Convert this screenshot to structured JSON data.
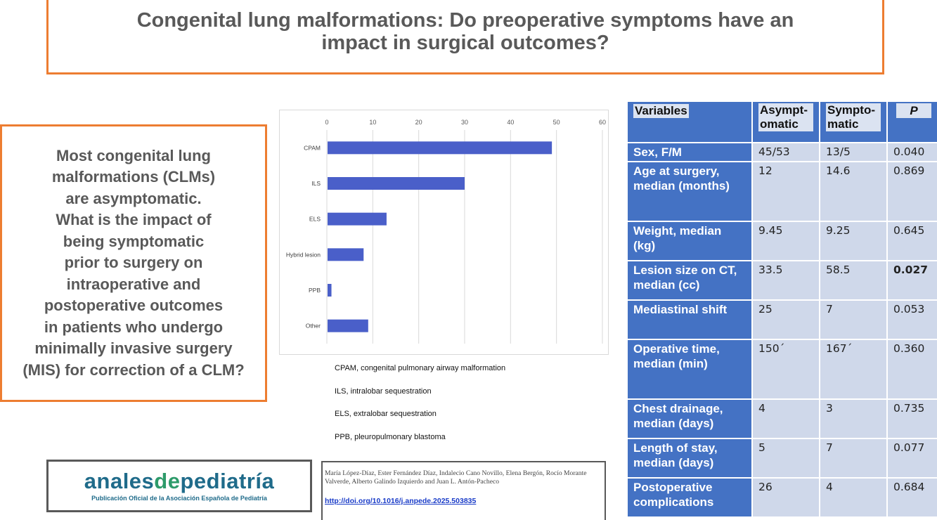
{
  "title": "Congenital lung malformations: Do preoperative symptoms have an impact in surgical outcomes?",
  "question": "Most congenital lung malformations (CLMs)\nare asymptomatic.\nWhat is the impact of\nbeing symptomatic\nprior to surgery on\nintraoperative and\npostoperative outcomes\nin patients who undergo\nminimally invasive surgery\n(MIS) for correction of a CLM?",
  "chart_data": {
    "type": "bar",
    "orientation": "horizontal",
    "categories": [
      "CPAM",
      "ILS",
      "ELS",
      "Hybrid lesion",
      "PPB",
      "Other"
    ],
    "values": [
      49,
      30,
      13,
      8,
      1,
      9
    ],
    "xlim": [
      0,
      60
    ],
    "xticks": [
      0,
      10,
      20,
      30,
      40,
      50,
      60
    ],
    "axis_position": "top",
    "grid": true,
    "bar_color": "#4A5FC9",
    "title": "",
    "xlabel": "",
    "ylabel": ""
  },
  "abbreviations": [
    "CPAM, congenital pulmonary airway malformation",
    "ILS, intralobar sequestration",
    "ELS, extralobar sequestration",
    "PPB, pleuropulmonary blastoma"
  ],
  "table": {
    "headers": [
      "Variables",
      "Asympt-omatic",
      "Sympto-matic",
      "P"
    ],
    "rows": [
      {
        "variable": "Sex, F/M",
        "asymptomatic": "45/53",
        "symptomatic": "13/5",
        "p": "0.040",
        "p_bold": false
      },
      {
        "variable": "Age at surgery, median (months)",
        "asymptomatic": "12",
        "symptomatic": "14.6",
        "p": "0.869",
        "p_bold": false
      },
      {
        "variable": "Weight, median (kg)",
        "asymptomatic": "9.45",
        "symptomatic": "9.25",
        "p": "0.645",
        "p_bold": false
      },
      {
        "variable": "Lesion size on CT, median (cc)",
        "asymptomatic": "33.5",
        "symptomatic": "58.5",
        "p": "0.027",
        "p_bold": true
      },
      {
        "variable": "Mediastinal shift",
        "asymptomatic": "25",
        "symptomatic": "7",
        "p": "0.053",
        "p_bold": false
      },
      {
        "variable": "Operative time, median (min)",
        "asymptomatic": "150´",
        "symptomatic": "167´",
        "p": "0.360",
        "p_bold": false
      },
      {
        "variable": "Chest drainage, median (days)",
        "asymptomatic": "4",
        "symptomatic": "3",
        "p": "0.735",
        "p_bold": false
      },
      {
        "variable": "Length of stay, median (days)",
        "asymptomatic": "5",
        "symptomatic": "7",
        "p": "0.077",
        "p_bold": false
      },
      {
        "variable": "Postoperative complications",
        "asymptomatic": "26",
        "symptomatic": "4",
        "p": "0.684",
        "p_bold": false
      }
    ]
  },
  "logo": {
    "part1": "anales",
    "part2": "de",
    "part3": "pediatría",
    "subtitle": "Publicación Oficial de la Asociación Española de Pediatría"
  },
  "citation": {
    "authors": "María López-Díaz, Ester Fernández Díaz, Indalecio Cano Novillo, Elena Bergón, Rocío Morante Valverde, Alberto Galindo Izquierdo and Juan L. Antón-Pacheco",
    "doi": "http://doi.org/10.1016/j.anpede.2025.503835"
  }
}
